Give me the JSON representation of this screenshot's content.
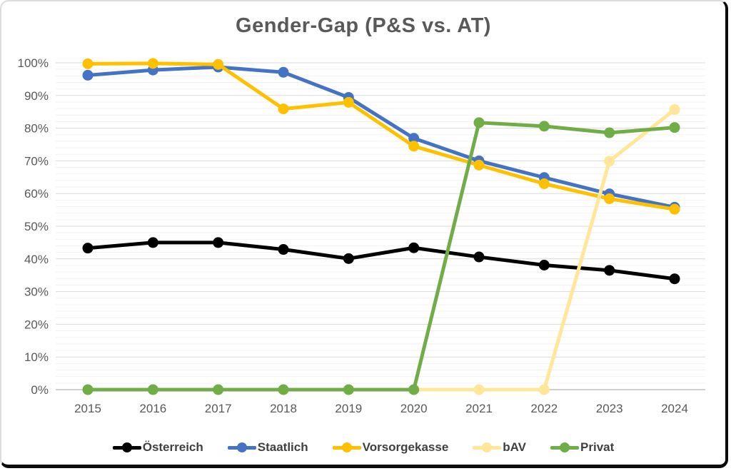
{
  "chart_data": {
    "type": "line",
    "title": "Gender-Gap (P&S vs. AT)",
    "x": [
      2015,
      2016,
      2017,
      2018,
      2019,
      2020,
      2021,
      2022,
      2023,
      2024
    ],
    "y_axis": {
      "min": 0,
      "max": 100,
      "major_step": 10,
      "minor_step": 2,
      "tick_format": "percent"
    },
    "grid": true,
    "legend_position": "bottom",
    "series": [
      {
        "name": "Österreich",
        "color": "#000000",
        "values": [
          43.3,
          45.0,
          45.0,
          42.9,
          40.1,
          43.4,
          40.6,
          38.1,
          36.5,
          33.9
        ]
      },
      {
        "name": "Staatlich",
        "color": "#4472C4",
        "values": [
          96.2,
          97.8,
          98.7,
          97.1,
          89.4,
          76.9,
          70.0,
          64.9,
          59.9,
          55.8
        ]
      },
      {
        "name": "Vorsorgekasse",
        "color": "#FFC000",
        "values": [
          99.7,
          99.8,
          99.5,
          85.9,
          87.9,
          74.5,
          68.7,
          63.0,
          58.4,
          55.2
        ]
      },
      {
        "name": "bAV",
        "color": "#FFE699",
        "values": [
          0,
          0,
          0,
          0,
          0,
          0,
          0,
          0,
          69.9,
          85.7
        ]
      },
      {
        "name": "Privat",
        "color": "#70AD47",
        "values": [
          0,
          0,
          0,
          0,
          0,
          0,
          81.7,
          80.6,
          78.6,
          80.2
        ]
      }
    ],
    "colors": {
      "title": "#595959",
      "axis_labels": "#595959",
      "major_grid": "#d9d9d9",
      "minor_grid": "#f2f2f2",
      "zero_axis": "#bfbfbf",
      "legend_text": "#404040"
    }
  }
}
